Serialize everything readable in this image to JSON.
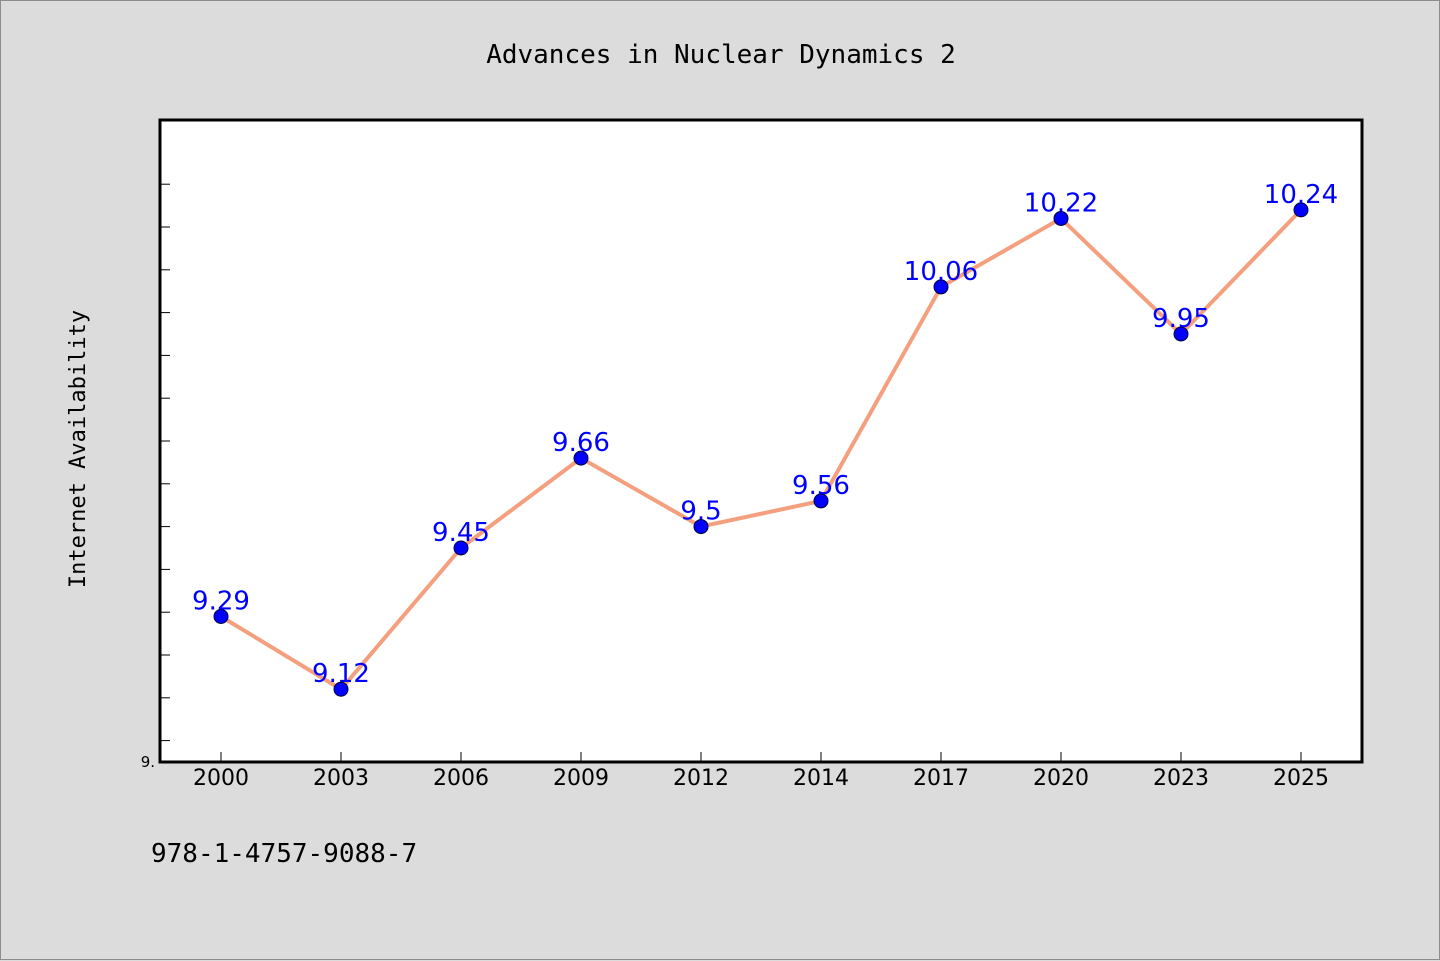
{
  "chart_data": {
    "type": "line",
    "title": "Advances in Nuclear Dynamics 2",
    "xlabel": "",
    "ylabel": "Internet Availability",
    "categories": [
      "2000",
      "2003",
      "2006",
      "2009",
      "2012",
      "2014",
      "2017",
      "2020",
      "2023",
      "2025"
    ],
    "series": [
      {
        "values": [
          9.29,
          9.12,
          9.45,
          9.66,
          9.5,
          9.56,
          10.06,
          10.22,
          9.95,
          10.24
        ],
        "labels": [
          "9.29",
          "9.12",
          "9.45",
          "9.66",
          "9.5",
          "9.56",
          "10.06",
          "10.22",
          "9.95",
          "10.24"
        ],
        "line_color": "#f4a07e",
        "marker_color": "#0000ff"
      }
    ],
    "ylim": [
      8.95,
      10.45
    ],
    "y_tick_label": "9.",
    "grid": false,
    "legend": "none",
    "data_label_color": "#0000ff"
  },
  "footer": {
    "isbn": "978-1-4757-9088-7"
  }
}
